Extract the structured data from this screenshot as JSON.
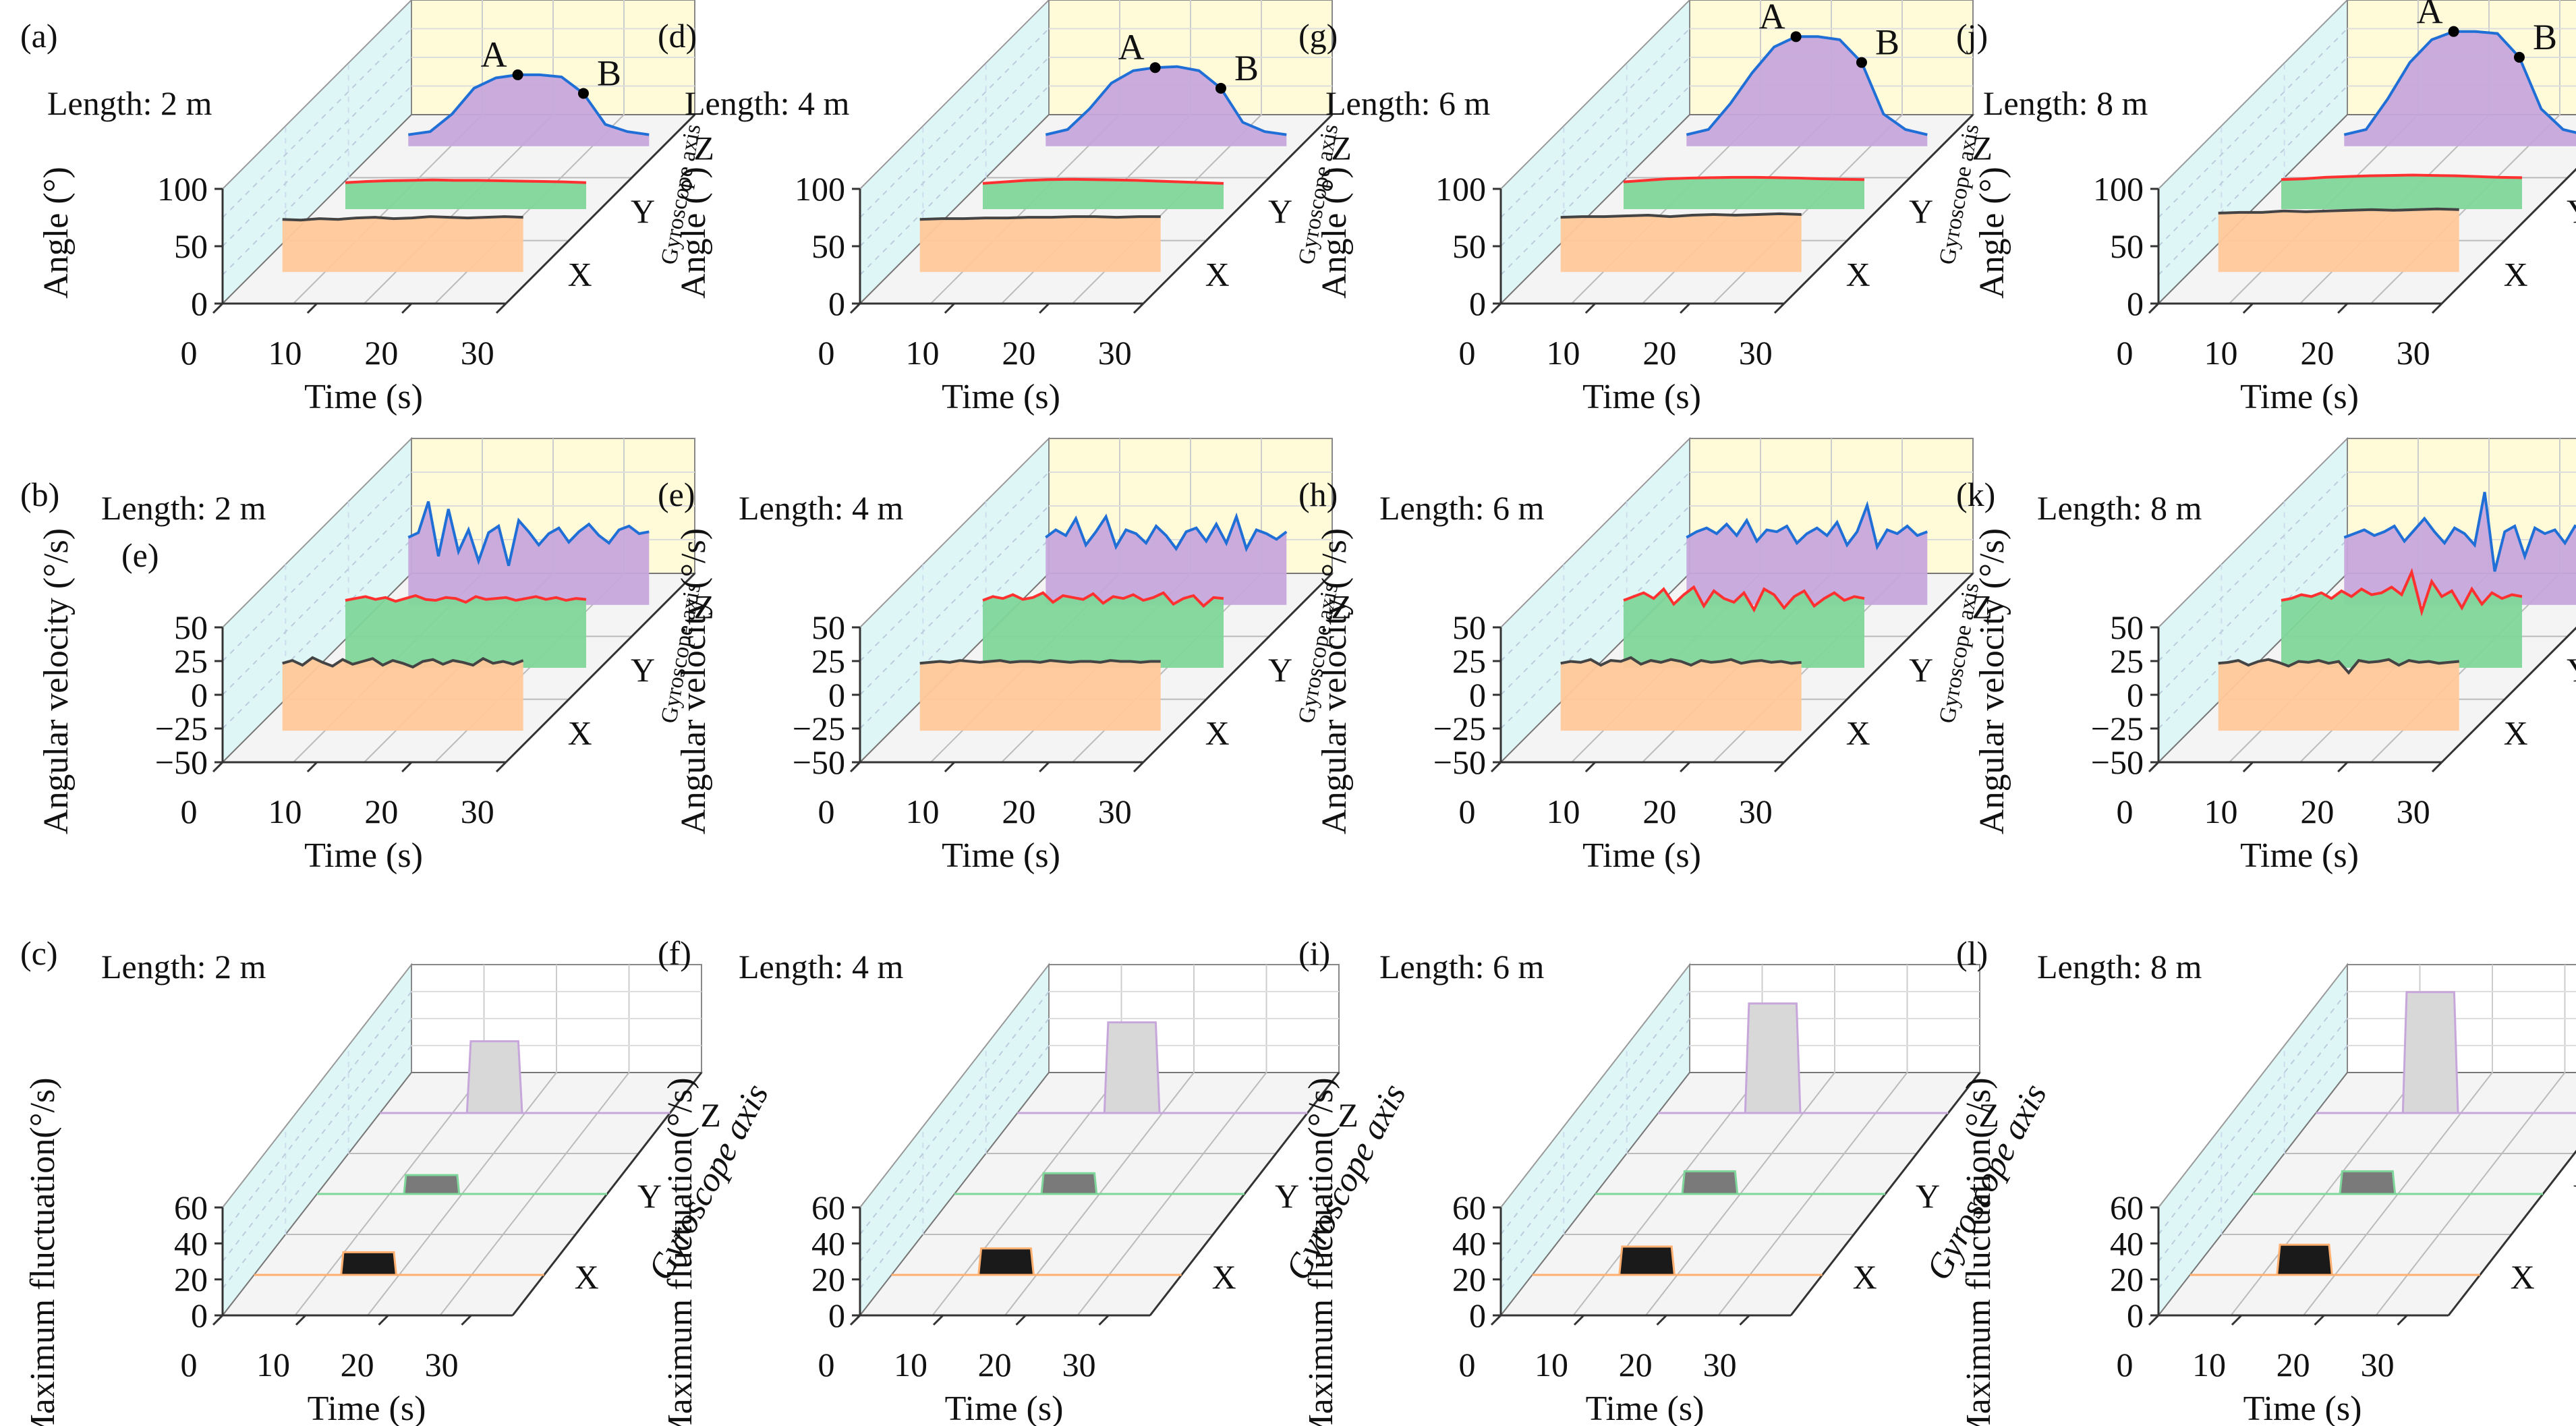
{
  "chart_data": [
    {
      "panel": "(a)",
      "type": "area",
      "row": "angle",
      "length_label": "Length: 2 m",
      "ylabel": "Angle (°)",
      "xlabel": "Time (s)",
      "gyro_label": "Gyroscope axis",
      "axes": [
        "X",
        "Y",
        "Z"
      ],
      "x_ticks": [
        "0",
        "10",
        "20",
        "30"
      ],
      "y_ticks": [
        "0",
        "50",
        "100"
      ],
      "xlim": [
        0,
        30
      ],
      "ylim": [
        0,
        100
      ],
      "points": [
        "A",
        "B"
      ],
      "series": [
        {
          "axis": "X",
          "fill": "#ffc89a",
          "line": "#444444",
          "level": 78,
          "values": [
            76,
            75,
            77,
            76,
            78,
            79,
            77,
            78,
            80,
            79,
            78,
            79,
            80,
            79
          ]
        },
        {
          "axis": "Y",
          "fill": "#7fd69a",
          "line": "#ff3030",
          "level": 75,
          "values": [
            70,
            73,
            75,
            76,
            77,
            76,
            76,
            75,
            74,
            73,
            72,
            70
          ]
        },
        {
          "axis": "Z",
          "fill": "#c7a6dc",
          "line": "#1f6fd6",
          "level": 95,
          "values": [
            0,
            3,
            20,
            45,
            55,
            58,
            58,
            56,
            40,
            10,
            3,
            0
          ]
        }
      ]
    },
    {
      "panel": "(d)",
      "type": "area",
      "row": "angle",
      "length_label": "Length: 4 m",
      "ylabel": "Angle (°)",
      "xlabel": "Time (s)",
      "gyro_label": "Gyroscope axis",
      "axes": [
        "X",
        "Y",
        "Z"
      ],
      "x_ticks": [
        "0",
        "10",
        "20",
        "30"
      ],
      "y_ticks": [
        "0",
        "50",
        "100"
      ],
      "xlim": [
        0,
        30
      ],
      "ylim": [
        0,
        100
      ],
      "points": [
        "A",
        "B"
      ],
      "series": [
        {
          "axis": "X",
          "fill": "#ffc89a",
          "line": "#444444",
          "level": 78,
          "values": [
            76,
            77,
            77,
            78,
            78,
            79,
            79,
            80,
            80,
            79,
            80,
            80
          ]
        },
        {
          "axis": "Y",
          "fill": "#7fd69a",
          "line": "#ff3030",
          "level": 75,
          "values": [
            68,
            72,
            76,
            78,
            79,
            78,
            77,
            76,
            74,
            72,
            70,
            68
          ]
        },
        {
          "axis": "Z",
          "fill": "#c7a6dc",
          "line": "#1f6fd6",
          "level": 95,
          "values": [
            0,
            5,
            25,
            50,
            62,
            65,
            66,
            62,
            45,
            12,
            3,
            0
          ]
        }
      ]
    },
    {
      "panel": "(g)",
      "type": "area",
      "row": "angle",
      "length_label": "Length: 6 m",
      "ylabel": "Angle (°)",
      "xlabel": "Time (s)",
      "gyro_label": "Gyroscope axis",
      "axes": [
        "X",
        "Y",
        "Z"
      ],
      "x_ticks": [
        "0",
        "10",
        "20",
        "30"
      ],
      "y_ticks": [
        "0",
        "50",
        "100"
      ],
      "xlim": [
        0,
        30
      ],
      "ylim": [
        0,
        100
      ],
      "points": [
        "A",
        "B"
      ],
      "series": [
        {
          "axis": "X",
          "fill": "#ffc89a",
          "line": "#444444",
          "level": 78,
          "values": [
            79,
            80,
            80,
            81,
            82,
            80,
            82,
            83,
            82,
            83,
            84,
            83
          ]
        },
        {
          "axis": "Y",
          "fill": "#7fd69a",
          "line": "#ff3030",
          "level": 75,
          "values": [
            72,
            76,
            80,
            82,
            83,
            84,
            84,
            83,
            82,
            80,
            79,
            78
          ]
        },
        {
          "axis": "Z",
          "fill": "#c7a6dc",
          "line": "#1f6fd6",
          "level": 95,
          "values": [
            0,
            5,
            30,
            60,
            85,
            95,
            95,
            92,
            70,
            20,
            5,
            0
          ]
        }
      ]
    },
    {
      "panel": "(j)",
      "type": "area",
      "row": "angle",
      "length_label": "Length: 8 m",
      "ylabel": "Angle (°)",
      "xlabel": "Time (s)",
      "gyro_label": "Gyroscope axis",
      "axes": [
        "X",
        "Y",
        "Z"
      ],
      "x_ticks": [
        "0",
        "10",
        "20",
        "30"
      ],
      "y_ticks": [
        "0",
        "50",
        "100"
      ],
      "xlim": [
        0,
        30
      ],
      "ylim": [
        0,
        100
      ],
      "points": [
        "A",
        "B"
      ],
      "series": [
        {
          "axis": "X",
          "fill": "#ffc89a",
          "line": "#444444",
          "level": 78,
          "values": [
            85,
            86,
            86,
            88,
            87,
            88,
            89,
            90,
            89,
            90,
            91,
            90
          ]
        },
        {
          "axis": "Y",
          "fill": "#7fd69a",
          "line": "#ff3030",
          "level": 75,
          "values": [
            78,
            80,
            84,
            86,
            88,
            89,
            90,
            89,
            88,
            86,
            84,
            83
          ]
        },
        {
          "axis": "Z",
          "fill": "#c7a6dc",
          "line": "#1f6fd6",
          "level": 95,
          "values": [
            0,
            5,
            35,
            70,
            92,
            100,
            100,
            98,
            75,
            25,
            5,
            0
          ]
        }
      ]
    },
    {
      "panel": "(b)",
      "type": "line",
      "row": "velocity",
      "length_label": "Length: 2 m",
      "extra_label": "(e)",
      "ylabel": "Angular velocity (°/s)",
      "xlabel": "Time (s)",
      "gyro_label": "Gyroscope axis",
      "axes": [
        "X",
        "Y",
        "Z"
      ],
      "x_ticks": [
        "0",
        "10",
        "20",
        "30"
      ],
      "y_ticks": [
        "−50",
        "−25",
        "0",
        "25",
        "50"
      ],
      "xlim": [
        0,
        30
      ],
      "ylim": [
        -50,
        50
      ],
      "series": [
        {
          "axis": "X",
          "fill": "#ffc89a",
          "line": "#444444",
          "values": [
            0,
            3,
            -2,
            6,
            1,
            -3,
            4,
            -1,
            2,
            5,
            -2,
            3,
            0,
            -4,
            2,
            4,
            -1,
            3,
            1,
            -2,
            5,
            0,
            2,
            -1,
            3
          ]
        },
        {
          "axis": "Y",
          "fill": "#7fd69a",
          "line": "#ff3030",
          "values": [
            0,
            2,
            4,
            1,
            3,
            -1,
            2,
            5,
            1,
            0,
            3,
            2,
            -2,
            4,
            1,
            2,
            3,
            0,
            2,
            4,
            1,
            3,
            0,
            2,
            1
          ]
        },
        {
          "axis": "Z",
          "fill": "#c7a6dc",
          "line": "#1f6fd6",
          "values": [
            0,
            5,
            38,
            -20,
            30,
            -15,
            8,
            -25,
            5,
            12,
            -30,
            18,
            6,
            -8,
            4,
            10,
            -5,
            6,
            14,
            2,
            -6,
            8,
            12,
            4,
            6
          ]
        }
      ]
    },
    {
      "panel": "(e)",
      "type": "line",
      "row": "velocity",
      "length_label": "Length: 4 m",
      "ylabel": "Angular velocity (°/s)",
      "xlabel": "Time (s)",
      "gyro_label": "Gyroscope axis",
      "axes": [
        "X",
        "Y",
        "Z"
      ],
      "x_ticks": [
        "0",
        "10",
        "20",
        "30"
      ],
      "y_ticks": [
        "−50",
        "−25",
        "0",
        "25",
        "50"
      ],
      "xlim": [
        0,
        30
      ],
      "ylim": [
        -50,
        50
      ],
      "series": [
        {
          "axis": "X",
          "fill": "#ffc89a",
          "line": "#444444",
          "values": [
            0,
            1,
            2,
            1,
            3,
            2,
            1,
            2,
            3,
            1,
            2,
            2,
            1,
            3,
            2,
            1,
            2,
            2,
            1,
            3,
            2,
            2,
            1,
            2,
            2
          ]
        },
        {
          "axis": "Y",
          "fill": "#7fd69a",
          "line": "#ff3030",
          "values": [
            0,
            4,
            2,
            6,
            1,
            3,
            8,
            -2,
            5,
            3,
            1,
            7,
            -3,
            4,
            2,
            6,
            0,
            3,
            8,
            -4,
            2,
            5,
            -6,
            3,
            2
          ]
        },
        {
          "axis": "Z",
          "fill": "#c7a6dc",
          "line": "#1f6fd6",
          "values": [
            0,
            8,
            2,
            20,
            -8,
            6,
            22,
            -10,
            8,
            4,
            -6,
            12,
            2,
            -12,
            6,
            10,
            -4,
            14,
            -6,
            22,
            -12,
            8,
            4,
            -2,
            6
          ]
        }
      ]
    },
    {
      "panel": "(h)",
      "type": "line",
      "row": "velocity",
      "length_label": "Length: 6 m",
      "ylabel": "Angular velocity (°/s)",
      "xlabel": "Time (s)",
      "gyro_label": "Gyroscope axis",
      "axes": [
        "X",
        "Y",
        "Z"
      ],
      "x_ticks": [
        "0",
        "10",
        "20",
        "30"
      ],
      "y_ticks": [
        "−50",
        "−25",
        "0",
        "25",
        "50"
      ],
      "xlim": [
        0,
        30
      ],
      "ylim": [
        -50,
        50
      ],
      "series": [
        {
          "axis": "X",
          "fill": "#ffc89a",
          "line": "#444444",
          "values": [
            0,
            2,
            1,
            4,
            -2,
            3,
            2,
            6,
            -1,
            3,
            1,
            4,
            2,
            -2,
            3,
            1,
            2,
            4,
            0,
            2,
            3,
            1,
            2,
            0,
            1
          ]
        },
        {
          "axis": "Y",
          "fill": "#7fd69a",
          "line": "#ff3030",
          "values": [
            0,
            4,
            8,
            2,
            12,
            -4,
            6,
            14,
            -6,
            10,
            2,
            -2,
            8,
            -10,
            12,
            6,
            -8,
            4,
            10,
            -6,
            2,
            8,
            0,
            4,
            2
          ]
        },
        {
          "axis": "Z",
          "fill": "#c7a6dc",
          "line": "#1f6fd6",
          "values": [
            0,
            6,
            10,
            4,
            14,
            2,
            18,
            -4,
            8,
            6,
            12,
            -6,
            4,
            10,
            2,
            16,
            -8,
            6,
            34,
            -10,
            8,
            4,
            12,
            2,
            6
          ]
        }
      ]
    },
    {
      "panel": "(k)",
      "type": "line",
      "row": "velocity",
      "length_label": "Length: 8 m",
      "ylabel": "Angular velocity (°/s)",
      "xlabel": "Time (s)",
      "gyro_label": "Gyroscope axis",
      "axes": [
        "X",
        "Y",
        "Z"
      ],
      "x_ticks": [
        "0",
        "10",
        "20",
        "30"
      ],
      "y_ticks": [
        "−50",
        "−25",
        "0",
        "25",
        "50"
      ],
      "xlim": [
        0,
        30
      ],
      "ylim": [
        -50,
        50
      ],
      "series": [
        {
          "axis": "X",
          "fill": "#ffc89a",
          "line": "#444444",
          "values": [
            0,
            1,
            3,
            -2,
            2,
            4,
            1,
            -3,
            2,
            1,
            3,
            0,
            2,
            -10,
            3,
            1,
            2,
            4,
            -2,
            3,
            1,
            2,
            0,
            1,
            2
          ]
        },
        {
          "axis": "Y",
          "fill": "#7fd69a",
          "line": "#ff3030",
          "values": [
            0,
            2,
            6,
            4,
            8,
            2,
            10,
            4,
            12,
            6,
            8,
            14,
            6,
            30,
            -12,
            20,
            4,
            10,
            -8,
            12,
            -4,
            8,
            2,
            6,
            4
          ]
        },
        {
          "axis": "Z",
          "fill": "#c7a6dc",
          "line": "#1f6fd6",
          "values": [
            0,
            4,
            8,
            2,
            6,
            12,
            -4,
            8,
            20,
            6,
            -6,
            10,
            4,
            -8,
            48,
            -36,
            6,
            12,
            -20,
            10,
            4,
            8,
            -6,
            12,
            6
          ]
        }
      ]
    },
    {
      "panel": "(c)",
      "type": "bar",
      "row": "fluctuation",
      "length_label": "Length: 2 m",
      "ylabel": "Maximum fluctuation(°/s)",
      "xlabel": "Time (s)",
      "gyro_label": "Gyroscope axis",
      "axes": [
        "X",
        "Y",
        "Z"
      ],
      "x_ticks": [
        "0",
        "10",
        "20",
        "30"
      ],
      "y_ticks": [
        "0",
        "20",
        "40",
        "60"
      ],
      "xlim": [
        0,
        35
      ],
      "ylim": [
        0,
        60
      ],
      "bars": [
        {
          "axis": "X",
          "value": 12,
          "fill": "#1a1a1a",
          "line": "#ffb070"
        },
        {
          "axis": "Y",
          "value": 10,
          "fill": "#7a7a7a",
          "line": "#7fd69a"
        },
        {
          "axis": "Z",
          "value": 38,
          "fill": "#d8d8d8",
          "line": "#c7a6dc"
        }
      ]
    },
    {
      "panel": "(f)",
      "type": "bar",
      "row": "fluctuation",
      "length_label": "Length: 4 m",
      "ylabel": "Maximum fluctuation(°/s)",
      "xlabel": "Time (s)",
      "gyro_label": "Gyroscope axis",
      "axes": [
        "X",
        "Y",
        "Z"
      ],
      "x_ticks": [
        "0",
        "10",
        "20",
        "30"
      ],
      "y_ticks": [
        "0",
        "20",
        "40",
        "60"
      ],
      "xlim": [
        0,
        35
      ],
      "ylim": [
        0,
        60
      ],
      "bars": [
        {
          "axis": "X",
          "value": 14,
          "fill": "#1a1a1a",
          "line": "#ffb070"
        },
        {
          "axis": "Y",
          "value": 11,
          "fill": "#7a7a7a",
          "line": "#7fd69a"
        },
        {
          "axis": "Z",
          "value": 48,
          "fill": "#d8d8d8",
          "line": "#c7a6dc"
        }
      ]
    },
    {
      "panel": "(i)",
      "type": "bar",
      "row": "fluctuation",
      "length_label": "Length: 6 m",
      "ylabel": "Maximum fluctuation(°/s)",
      "xlabel": "Time (s)",
      "gyro_label": "Gyroscope axis",
      "axes": [
        "X",
        "Y",
        "Z"
      ],
      "x_ticks": [
        "0",
        "10",
        "20",
        "30"
      ],
      "y_ticks": [
        "0",
        "20",
        "40",
        "60"
      ],
      "xlim": [
        0,
        35
      ],
      "ylim": [
        0,
        60
      ],
      "bars": [
        {
          "axis": "X",
          "value": 15,
          "fill": "#1a1a1a",
          "line": "#ffb070"
        },
        {
          "axis": "Y",
          "value": 12,
          "fill": "#7a7a7a",
          "line": "#7fd69a"
        },
        {
          "axis": "Z",
          "value": 58,
          "fill": "#d8d8d8",
          "line": "#c7a6dc"
        }
      ]
    },
    {
      "panel": "(l)",
      "type": "bar",
      "row": "fluctuation",
      "length_label": "Length: 8 m",
      "ylabel": "Maximum fluctuation(°/s)",
      "xlabel": "Time (s)",
      "gyro_label": "Gyroscope axis",
      "axes": [
        "X",
        "Y",
        "Z"
      ],
      "x_ticks": [
        "0",
        "10",
        "20",
        "30"
      ],
      "y_ticks": [
        "0",
        "20",
        "40",
        "60"
      ],
      "xlim": [
        0,
        35
      ],
      "ylim": [
        0,
        60
      ],
      "bars": [
        {
          "axis": "X",
          "value": 16,
          "fill": "#1a1a1a",
          "line": "#ffb070"
        },
        {
          "axis": "Y",
          "value": 12,
          "fill": "#7a7a7a",
          "line": "#7fd69a"
        },
        {
          "axis": "Z",
          "value": 64,
          "fill": "#d8d8d8",
          "line": "#c7a6dc"
        }
      ]
    }
  ]
}
